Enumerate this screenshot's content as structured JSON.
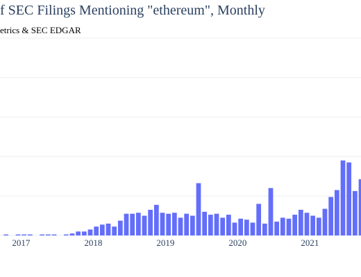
{
  "title_visible": "f SEC Filings Mentioning \"ethereum\", Monthly",
  "subtitle_visible": "etrics & SEC EDGAR",
  "colors": {
    "bar": "#636efa",
    "grid": "#ebeef3",
    "axis_text": "#2a3f5f"
  },
  "chart_data": {
    "type": "bar",
    "title": "f SEC Filings Mentioning \"ethereum\", Monthly",
    "subtitle": "etrics & SEC EDGAR",
    "xlabel": "",
    "ylabel": "",
    "grid": true,
    "ylim": [
      0,
      200
    ],
    "x_tick_labels": [
      "2017",
      "2018",
      "2019",
      "2020",
      "2021"
    ],
    "x_tick_dates": [
      "2017-01",
      "2018-01",
      "2019-01",
      "2020-01",
      "2021-01"
    ],
    "x_range": [
      "2016-09",
      "2021-09"
    ],
    "x": [
      "2016-10",
      "2016-11",
      "2016-12",
      "2017-01",
      "2017-02",
      "2017-03",
      "2017-04",
      "2017-05",
      "2017-06",
      "2017-07",
      "2017-08",
      "2017-09",
      "2017-10",
      "2017-11",
      "2017-12",
      "2018-01",
      "2018-02",
      "2018-03",
      "2018-04",
      "2018-05",
      "2018-06",
      "2018-07",
      "2018-08",
      "2018-09",
      "2018-10",
      "2018-11",
      "2018-12",
      "2019-01",
      "2019-02",
      "2019-03",
      "2019-04",
      "2019-05",
      "2019-06",
      "2019-07",
      "2019-08",
      "2019-09",
      "2019-10",
      "2019-11",
      "2019-12",
      "2020-01",
      "2020-02",
      "2020-03",
      "2020-04",
      "2020-05",
      "2020-06",
      "2020-07",
      "2020-08",
      "2020-09",
      "2020-10",
      "2020-11",
      "2020-12",
      "2021-01",
      "2021-02",
      "2021-03",
      "2021-04",
      "2021-05",
      "2021-06",
      "2021-07",
      "2021-08",
      "2021-09"
    ],
    "values": [
      1,
      0,
      1,
      1,
      1,
      0,
      1,
      1,
      1,
      0,
      1,
      2,
      4,
      4,
      6,
      9,
      11,
      12,
      9,
      15,
      22,
      22,
      23,
      20,
      26,
      31,
      23,
      22,
      23,
      18,
      22,
      20,
      53,
      24,
      21,
      22,
      18,
      21,
      13,
      17,
      16,
      13,
      32,
      12,
      48,
      14,
      18,
      17,
      21,
      26,
      23,
      20,
      18,
      27,
      39,
      46,
      76,
      74,
      45,
      57
    ]
  }
}
